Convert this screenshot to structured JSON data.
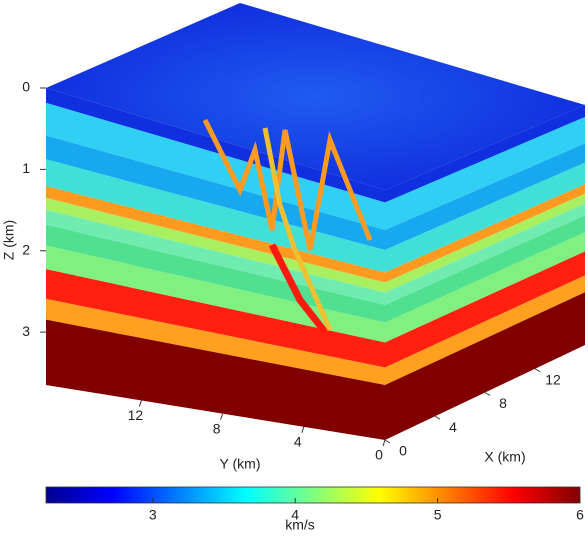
{
  "chart_data": {
    "type": "cube",
    "zlabel": "Z (km)",
    "ylabel": "Y (km)",
    "xlabel": "X (km)",
    "zlim": [
      0,
      3.65
    ],
    "zticks": [
      0,
      1,
      2,
      3
    ],
    "ylim": [
      0,
      16.7
    ],
    "yticks": [
      12,
      8,
      4,
      0
    ],
    "xlim": [
      0,
      16
    ],
    "xticks": [
      0,
      4,
      8,
      12
    ],
    "colorbar": {
      "label": "km/s",
      "clim": [
        2.25,
        6
      ],
      "ticks": [
        3,
        4,
        5,
        6
      ],
      "colormap": "jet"
    }
  }
}
